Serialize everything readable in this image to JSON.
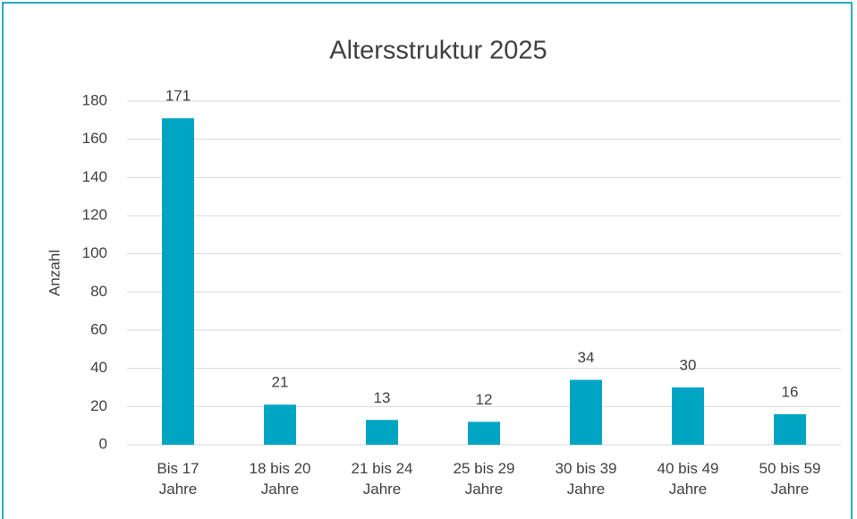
{
  "chart_data": {
    "type": "bar",
    "title": "Altersstruktur 2025",
    "y_label": "Anzahl",
    "categories": [
      "Bis 17\nJahre",
      "18 bis 20\nJahre",
      "21 bis 24\nJahre",
      "25 bis 29\nJahre",
      "30 bis 39\nJahre",
      "40 bis 49\nJahre",
      "50 bis 59\nJahre"
    ],
    "values": [
      171,
      21,
      13,
      12,
      34,
      30,
      16
    ],
    "color": "#00a5c4",
    "ylim": [
      0,
      180
    ],
    "yticks": [
      0,
      20,
      40,
      60,
      80,
      100,
      120,
      140,
      160,
      180
    ],
    "grid": true,
    "data_labels": true
  }
}
